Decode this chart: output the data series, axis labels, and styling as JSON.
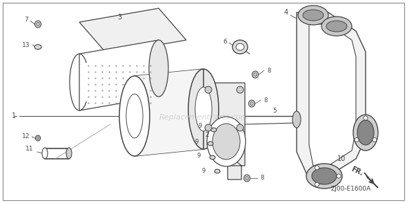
{
  "bg_color": "#ffffff",
  "border_color": "#555555",
  "line_color": "#555555",
  "dark_color": "#444444",
  "watermark": "ReplacementParts.com",
  "watermark_color": "#bbbbbb",
  "diagram_code": "ZJ00-E1600A",
  "fr_label": "FR."
}
